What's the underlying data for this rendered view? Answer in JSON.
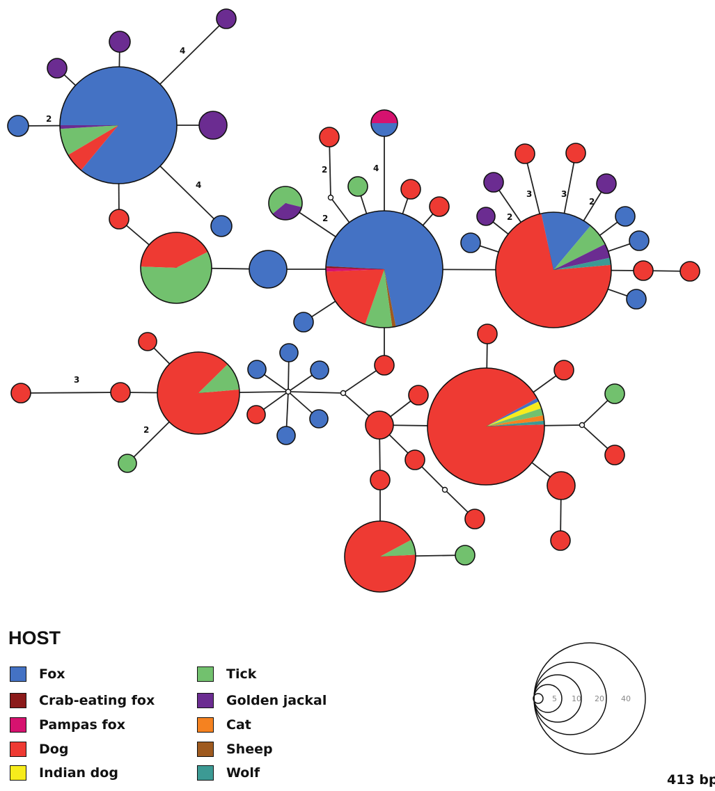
{
  "legend": {
    "title": "HOST",
    "items": [
      {
        "key": "fox",
        "label": "Fox",
        "color": "#4472C4"
      },
      {
        "key": "crab",
        "label": "Crab-eating fox",
        "color": "#8B1A1A"
      },
      {
        "key": "pampas",
        "label": "Pampas fox",
        "color": "#D6126F"
      },
      {
        "key": "dog",
        "label": "Dog",
        "color": "#EE3A33"
      },
      {
        "key": "indian",
        "label": "Indian dog",
        "color": "#F7EC1C"
      },
      {
        "key": "tick",
        "label": "Tick",
        "color": "#72C16E"
      },
      {
        "key": "jackal",
        "label": "Golden jackal",
        "color": "#6B2C91"
      },
      {
        "key": "cat",
        "label": "Cat",
        "color": "#F58220"
      },
      {
        "key": "sheep",
        "label": "Sheep",
        "color": "#9E5A1F"
      },
      {
        "key": "wolf",
        "label": "Wolf",
        "color": "#3C9A94"
      }
    ]
  },
  "scale": {
    "labels": [
      "5",
      "10",
      "20",
      "40"
    ]
  },
  "sequence_length": "413 bp",
  "edge_labels": [
    "4",
    "2",
    "4",
    "2",
    "4",
    "2",
    "3",
    "3",
    "2",
    "2",
    "3",
    "2"
  ],
  "network": {
    "haplotypes": [
      {
        "id": "A",
        "host": {
          "fox": 0.86,
          "dog": 0.055,
          "tick": 0.075,
          "jackal": 0.01
        }
      },
      {
        "id": "B",
        "host": {
          "fox": 0.71,
          "dog": 0.19,
          "pampas": 0.01,
          "crab": 0.005,
          "tick": 0.075,
          "sheep": 0.01
        }
      },
      {
        "id": "C",
        "host": {
          "dog": 0.73,
          "fox": 0.145,
          "tick": 0.065,
          "jackal": 0.04,
          "wolf": 0.02
        }
      },
      {
        "id": "D",
        "host": {
          "dog": 0.925,
          "fox": 0.01,
          "indian": 0.02,
          "tick": 0.02,
          "cat": 0.015,
          "wolf": 0.01
        }
      },
      {
        "id": "E",
        "host": {
          "dog": 0.42,
          "tick": 0.58
        }
      },
      {
        "id": "F",
        "host": {
          "dog": 0.89,
          "tick": 0.11
        }
      },
      {
        "id": "G",
        "host": {
          "dog": 0.93,
          "tick": 0.07
        }
      },
      {
        "id": "H",
        "host": {
          "pampas": 0.5,
          "fox": 0.5
        }
      },
      {
        "id": "I",
        "host": {
          "tick": 0.65,
          "jackal": 0.35
        }
      }
    ]
  }
}
